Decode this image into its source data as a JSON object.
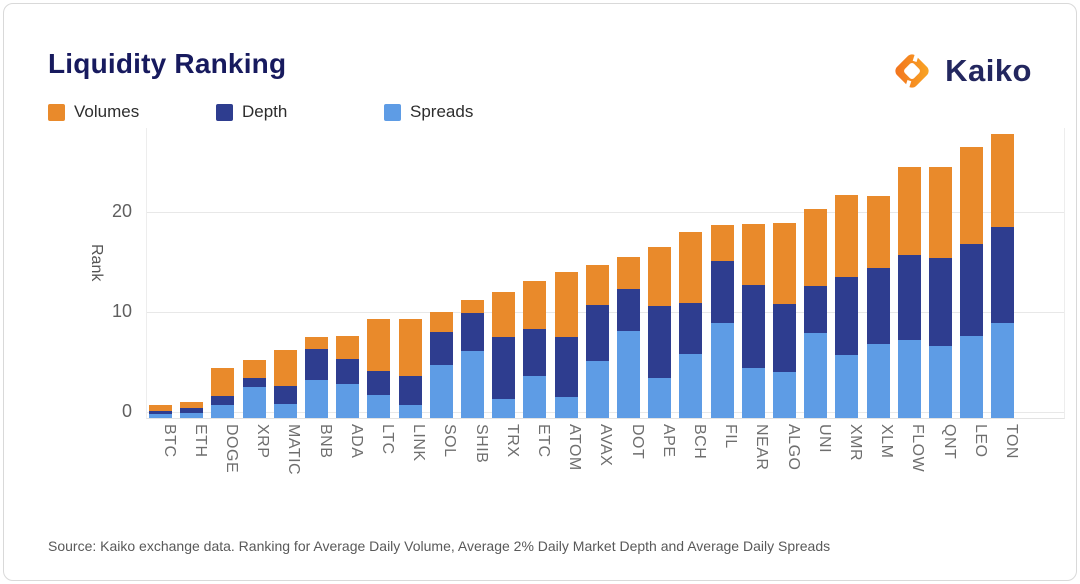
{
  "header": {
    "title": "Liquidity Ranking",
    "brand": "Kaiko"
  },
  "legend": {
    "items": [
      {
        "label": "Volumes",
        "color": "#E98A2B"
      },
      {
        "label": "Depth",
        "color": "#2E3D8F"
      },
      {
        "label": "Spreads",
        "color": "#5E9CE5"
      }
    ]
  },
  "chart_data": {
    "type": "bar",
    "stacked": true,
    "title": "Liquidity Ranking",
    "categories": [
      "BTC",
      "ETH",
      "DOGE",
      "XRP",
      "MATIC",
      "BNB",
      "ADA",
      "LTC",
      "LINK",
      "SOL",
      "SHIB",
      "TRX",
      "ETC",
      "ATOM",
      "AVAX",
      "DOT",
      "APE",
      "BCH",
      "FIL",
      "NEAR",
      "ALGO",
      "UNI",
      "XMR",
      "XLM",
      "FLOW",
      "QNT",
      "LEO",
      "TON"
    ],
    "series": [
      {
        "name": "Volumes",
        "color": "#E98A2B",
        "values": [
          0.6,
          0.6,
          2.8,
          1.75,
          3.55,
          1.25,
          2.3,
          5.2,
          5.7,
          2.0,
          1.35,
          4.45,
          4.8,
          6.5,
          4.0,
          3.15,
          5.85,
          7.1,
          3.55,
          6.15,
          8.15,
          7.65,
          8.2,
          7.25,
          8.75,
          9.05,
          9.65,
          9.3
        ]
      },
      {
        "name": "Depth",
        "color": "#2E3D8F",
        "values": [
          0.35,
          0.5,
          0.9,
          0.95,
          1.8,
          3.05,
          2.55,
          2.4,
          2.9,
          3.25,
          3.75,
          6.25,
          4.7,
          6.0,
          5.6,
          4.2,
          7.2,
          5.15,
          6.25,
          8.25,
          6.75,
          4.75,
          7.75,
          7.6,
          8.5,
          8.85,
          9.2,
          9.6
        ]
      },
      {
        "name": "Spreads",
        "color": "#5E9CE5",
        "values": [
          0.4,
          0.5,
          1.35,
          3.1,
          1.45,
          3.85,
          3.4,
          2.35,
          1.35,
          5.35,
          6.75,
          1.9,
          4.25,
          2.15,
          5.75,
          8.75,
          4.05,
          6.4,
          9.5,
          5.05,
          4.65,
          8.5,
          6.35,
          7.4,
          7.85,
          7.2,
          8.25,
          9.5
        ]
      }
    ],
    "stack_order_bottom_to_top": [
      "Spreads",
      "Depth",
      "Volumes"
    ],
    "totals": [
      1.35,
      1.6,
      5.05,
      5.8,
      6.8,
      8.15,
      8.25,
      9.95,
      9.95,
      10.6,
      11.85,
      12.6,
      13.75,
      14.65,
      15.35,
      16.1,
      17.1,
      18.65,
      19.3,
      19.45,
      19.55,
      20.9,
      22.3,
      22.25,
      25.1,
      25.1,
      27.1,
      28.4
    ],
    "xlabel": "",
    "ylabel": "Rank",
    "yticks": [
      0,
      10,
      20
    ],
    "ylim": [
      -0.55,
      28.45
    ],
    "grid": true,
    "legend_position": "top-left"
  },
  "footer": {
    "source": "Source: Kaiko exchange data. Ranking for Average Daily Volume, Average 2% Daily Market Depth and Average Daily Spreads"
  }
}
